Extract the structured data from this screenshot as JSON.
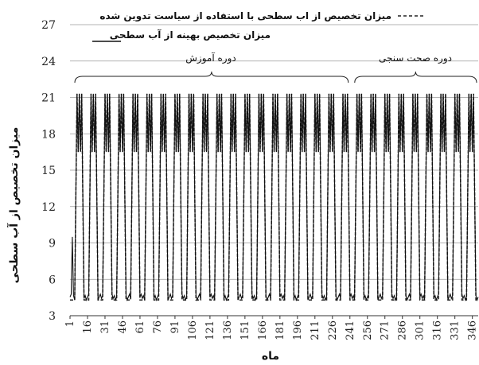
{
  "chart_data": {
    "type": "line",
    "title": "",
    "xlabel": "ماه",
    "ylabel": "میزان تخصیص از آب سطحی",
    "xlim": [
      1,
      351
    ],
    "ylim": [
      3,
      27
    ],
    "yticks": [
      3,
      6,
      9,
      12,
      15,
      18,
      21,
      24,
      27
    ],
    "xticks": [
      1,
      16,
      31,
      46,
      61,
      76,
      91,
      106,
      121,
      136,
      151,
      166,
      181,
      196,
      211,
      226,
      241,
      256,
      271,
      286,
      301,
      316,
      331,
      346
    ],
    "grid": "horizontal",
    "legend_position": "top-right",
    "series": [
      {
        "name": "میزان تخصیص از اب سطحی با استفاده از سیاست تدوین شده",
        "style": "dashed",
        "color": "#222222",
        "description_values": {
          "period_months": 12,
          "high": 21.3,
          "low": 4.3,
          "mid_step": 16.5
        }
      },
      {
        "name": "میزان تخصیص بهینه از آب سطحی",
        "style": "solid",
        "color": "#111111",
        "description_values": {
          "period_months": 12,
          "high": 21.3,
          "low": 4.3,
          "mid_step": 16.5
        }
      }
    ],
    "annotations": [
      {
        "label": "دوره آموزش",
        "from": 1,
        "to": 241
      },
      {
        "label": "دوره صحت سنجی",
        "from": 241,
        "to": 351
      }
    ]
  }
}
